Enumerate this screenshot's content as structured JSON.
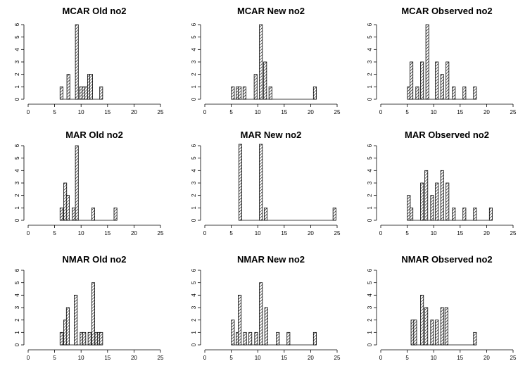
{
  "chart_data": [
    {
      "type": "bar",
      "title": "MCAR Old no2",
      "xlim": [
        0,
        25
      ],
      "ylim": [
        0,
        6
      ],
      "xticks": [
        "0",
        "5",
        "10",
        "15",
        "20",
        "25"
      ],
      "yticks": [
        "0",
        "1",
        "2",
        "3",
        "4",
        "5",
        "6"
      ],
      "bins": [
        {
          "x": 6.3,
          "y": 1
        },
        {
          "x": 7.6,
          "y": 2
        },
        {
          "x": 9.2,
          "y": 6
        },
        {
          "x": 10.0,
          "y": 1
        },
        {
          "x": 10.5,
          "y": 1
        },
        {
          "x": 11.0,
          "y": 1
        },
        {
          "x": 11.5,
          "y": 2
        },
        {
          "x": 11.9,
          "y": 2
        },
        {
          "x": 13.8,
          "y": 1
        }
      ]
    },
    {
      "type": "bar",
      "title": "MCAR New no2",
      "xlim": [
        0,
        25
      ],
      "ylim": [
        0,
        6
      ],
      "xticks": [
        "0",
        "5",
        "10",
        "15",
        "20",
        "25"
      ],
      "yticks": [
        "0",
        "1",
        "2",
        "3",
        "4",
        "5",
        "6"
      ],
      "bins": [
        {
          "x": 5.3,
          "y": 1
        },
        {
          "x": 6.2,
          "y": 1
        },
        {
          "x": 6.6,
          "y": 1
        },
        {
          "x": 7.5,
          "y": 1
        },
        {
          "x": 9.6,
          "y": 2
        },
        {
          "x": 10.6,
          "y": 6
        },
        {
          "x": 11.4,
          "y": 3
        },
        {
          "x": 12.4,
          "y": 1
        },
        {
          "x": 20.8,
          "y": 1
        }
      ]
    },
    {
      "type": "bar",
      "title": "MCAR Observed no2",
      "xlim": [
        0,
        25
      ],
      "ylim": [
        0,
        6
      ],
      "xticks": [
        "0",
        "5",
        "10",
        "15",
        "20",
        "25"
      ],
      "yticks": [
        "0",
        "1",
        "2",
        "3",
        "4",
        "5",
        "6"
      ],
      "bins": [
        {
          "x": 5.3,
          "y": 1
        },
        {
          "x": 5.8,
          "y": 3
        },
        {
          "x": 6.9,
          "y": 1
        },
        {
          "x": 7.8,
          "y": 3
        },
        {
          "x": 8.8,
          "y": 6
        },
        {
          "x": 10.6,
          "y": 3
        },
        {
          "x": 11.6,
          "y": 2
        },
        {
          "x": 12.6,
          "y": 3
        },
        {
          "x": 13.8,
          "y": 1
        },
        {
          "x": 15.8,
          "y": 1
        },
        {
          "x": 17.8,
          "y": 1
        }
      ]
    },
    {
      "type": "bar",
      "title": "MAR Old no2",
      "xlim": [
        0,
        25
      ],
      "ylim": [
        0,
        6
      ],
      "xticks": [
        "0",
        "5",
        "10",
        "15",
        "20",
        "25"
      ],
      "yticks": [
        "0",
        "1",
        "2",
        "3",
        "4",
        "5",
        "6"
      ],
      "bins": [
        {
          "x": 6.3,
          "y": 1
        },
        {
          "x": 7.0,
          "y": 3
        },
        {
          "x": 7.5,
          "y": 2
        },
        {
          "x": 8.6,
          "y": 1
        },
        {
          "x": 9.2,
          "y": 6
        },
        {
          "x": 12.3,
          "y": 1
        },
        {
          "x": 16.5,
          "y": 1
        }
      ]
    },
    {
      "type": "bar",
      "title": "MAR New no2",
      "xlim": [
        0,
        25
      ],
      "ylim": [
        0,
        6
      ],
      "xticks": [
        "0",
        "5",
        "10",
        "15",
        "20",
        "25"
      ],
      "yticks": [
        "0",
        "1",
        "2",
        "3",
        "4",
        "5",
        "6"
      ],
      "bins": [
        {
          "x": 6.7,
          "y": 6.2
        },
        {
          "x": 10.6,
          "y": 6.2
        },
        {
          "x": 11.5,
          "y": 1
        },
        {
          "x": 24.5,
          "y": 1
        }
      ]
    },
    {
      "type": "bar",
      "title": "MAR Observed no2",
      "xlim": [
        0,
        25
      ],
      "ylim": [
        0,
        6
      ],
      "xticks": [
        "0",
        "5",
        "10",
        "15",
        "20",
        "25"
      ],
      "yticks": [
        "0",
        "1",
        "2",
        "3",
        "4",
        "5",
        "6"
      ],
      "bins": [
        {
          "x": 5.3,
          "y": 2
        },
        {
          "x": 5.8,
          "y": 1
        },
        {
          "x": 7.8,
          "y": 3
        },
        {
          "x": 8.6,
          "y": 4
        },
        {
          "x": 9.7,
          "y": 2
        },
        {
          "x": 10.6,
          "y": 3
        },
        {
          "x": 11.6,
          "y": 4
        },
        {
          "x": 12.6,
          "y": 3
        },
        {
          "x": 13.8,
          "y": 1
        },
        {
          "x": 15.8,
          "y": 1
        },
        {
          "x": 17.8,
          "y": 1
        },
        {
          "x": 20.8,
          "y": 1
        }
      ]
    },
    {
      "type": "bar",
      "title": "NMAR Old no2",
      "xlim": [
        0,
        25
      ],
      "ylim": [
        0,
        6
      ],
      "xticks": [
        "0",
        "5",
        "10",
        "15",
        "20",
        "25"
      ],
      "yticks": [
        "0",
        "1",
        "2",
        "3",
        "4",
        "5",
        "6"
      ],
      "bins": [
        {
          "x": 6.3,
          "y": 1
        },
        {
          "x": 7.0,
          "y": 2
        },
        {
          "x": 7.5,
          "y": 3
        },
        {
          "x": 9.0,
          "y": 4
        },
        {
          "x": 10.1,
          "y": 1
        },
        {
          "x": 10.6,
          "y": 1
        },
        {
          "x": 11.6,
          "y": 1
        },
        {
          "x": 12.3,
          "y": 5
        },
        {
          "x": 12.9,
          "y": 1
        },
        {
          "x": 13.4,
          "y": 1
        },
        {
          "x": 13.8,
          "y": 1
        }
      ]
    },
    {
      "type": "bar",
      "title": "NMAR New no2",
      "xlim": [
        0,
        25
      ],
      "ylim": [
        0,
        6
      ],
      "xticks": [
        "0",
        "5",
        "10",
        "15",
        "20",
        "25"
      ],
      "yticks": [
        "0",
        "1",
        "2",
        "3",
        "4",
        "5",
        "6"
      ],
      "bins": [
        {
          "x": 5.3,
          "y": 2
        },
        {
          "x": 6.2,
          "y": 1
        },
        {
          "x": 6.6,
          "y": 4
        },
        {
          "x": 7.6,
          "y": 1
        },
        {
          "x": 8.6,
          "y": 1
        },
        {
          "x": 9.7,
          "y": 1
        },
        {
          "x": 10.6,
          "y": 5
        },
        {
          "x": 11.6,
          "y": 3
        },
        {
          "x": 13.8,
          "y": 1
        },
        {
          "x": 15.8,
          "y": 1
        },
        {
          "x": 20.8,
          "y": 1
        }
      ]
    },
    {
      "type": "bar",
      "title": "NMAR Observed no2",
      "xlim": [
        0,
        25
      ],
      "ylim": [
        0,
        6
      ],
      "xticks": [
        "0",
        "5",
        "10",
        "15",
        "20",
        "25"
      ],
      "yticks": [
        "0",
        "1",
        "2",
        "3",
        "4",
        "5",
        "6"
      ],
      "bins": [
        {
          "x": 6.0,
          "y": 2
        },
        {
          "x": 6.5,
          "y": 2
        },
        {
          "x": 7.8,
          "y": 4
        },
        {
          "x": 8.6,
          "y": 3
        },
        {
          "x": 9.7,
          "y": 2
        },
        {
          "x": 10.6,
          "y": 2
        },
        {
          "x": 11.6,
          "y": 3
        },
        {
          "x": 12.4,
          "y": 3
        },
        {
          "x": 17.8,
          "y": 1
        }
      ]
    }
  ]
}
